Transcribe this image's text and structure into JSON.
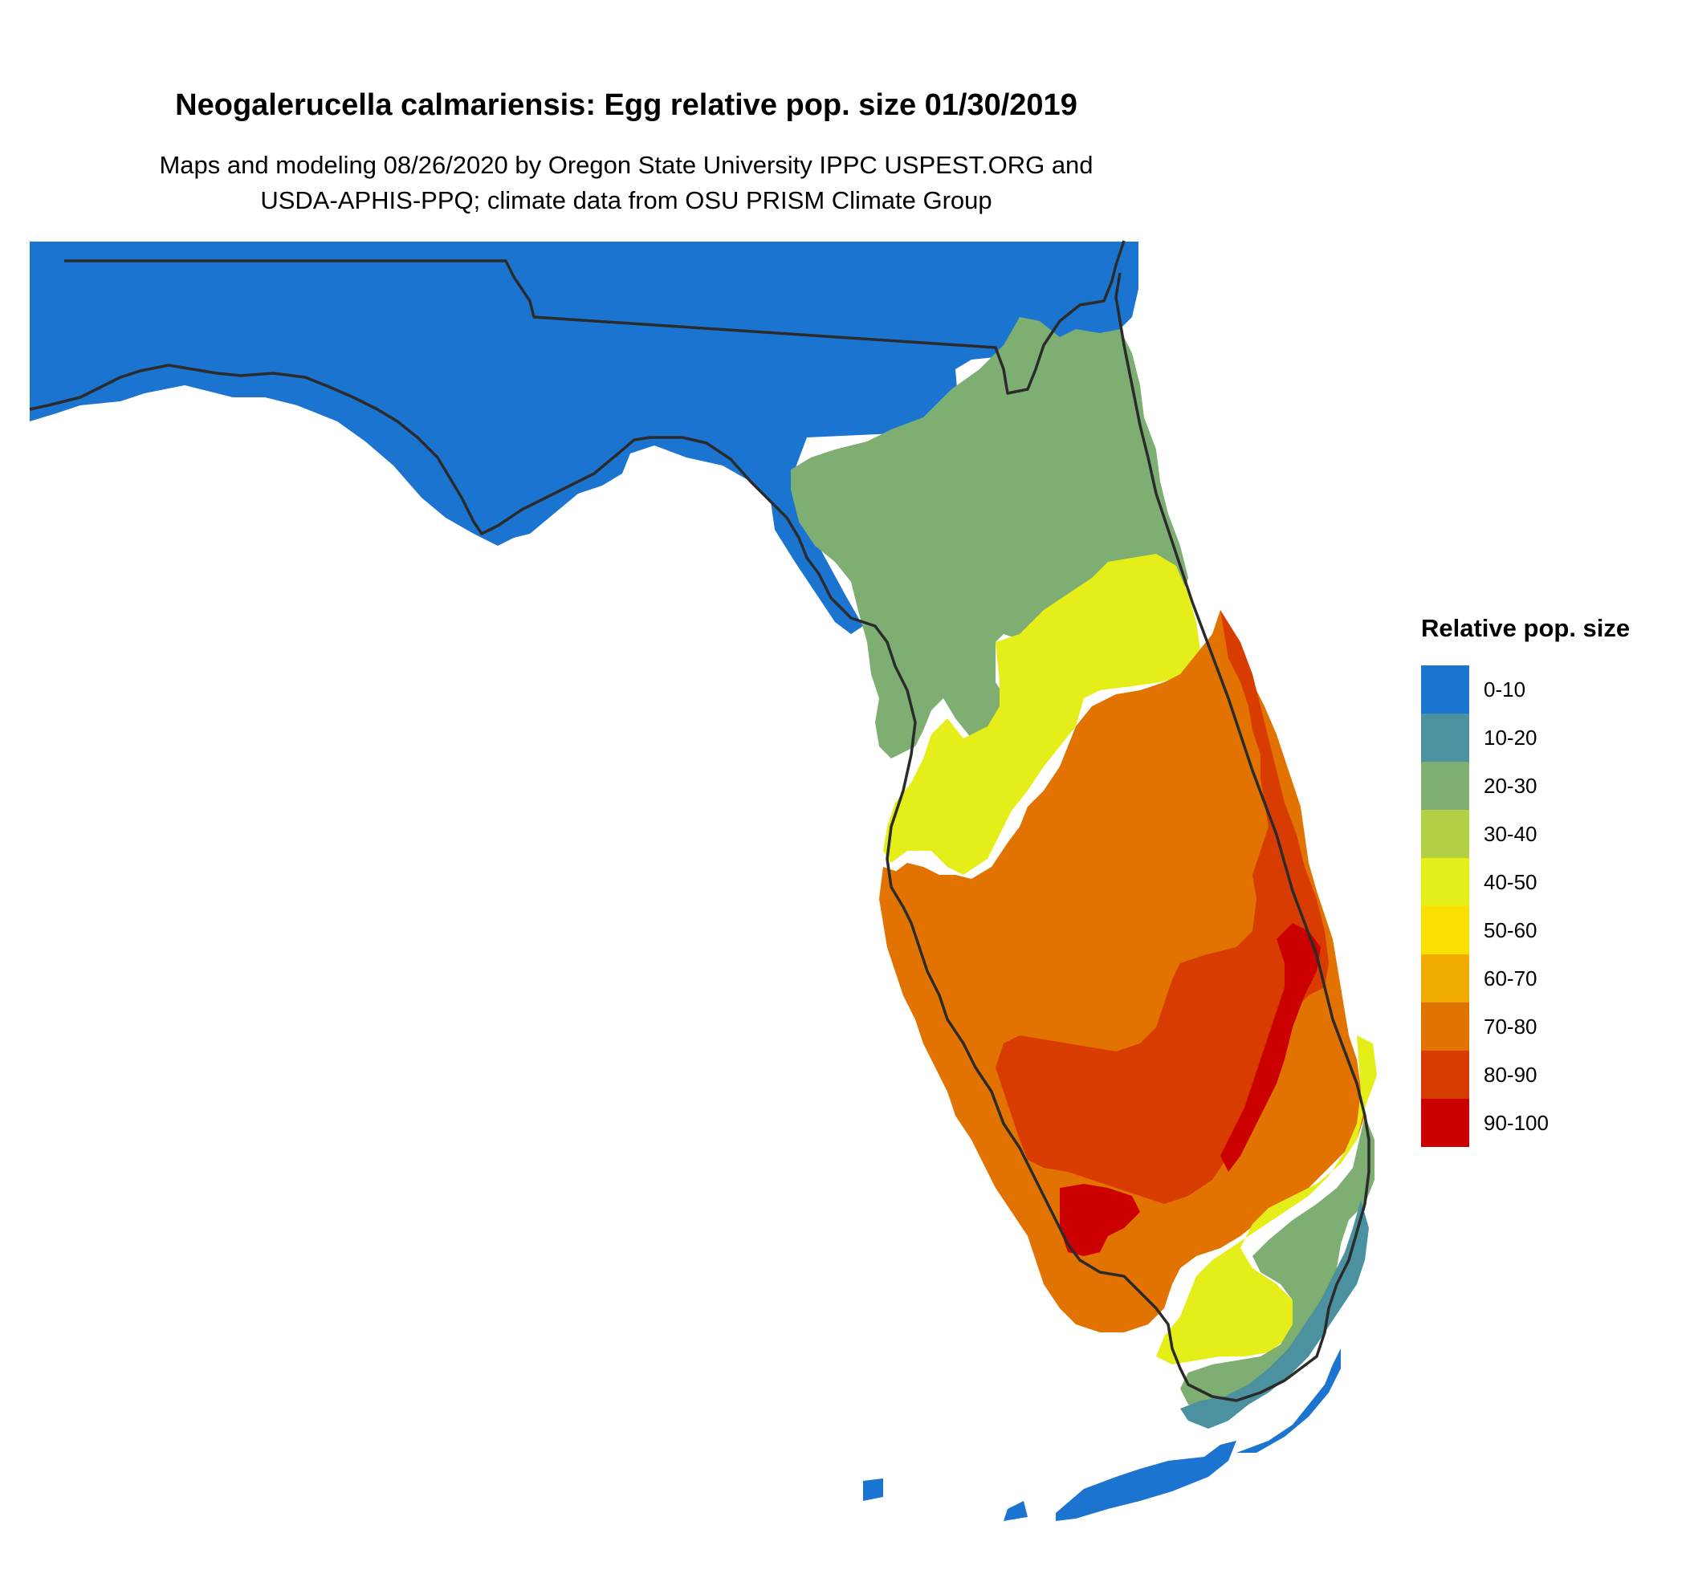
{
  "title": "Neogalerucella calmariensis: Egg relative pop. size 01/30/2019",
  "subtitle_line1": "Maps and modeling 08/26/2020 by Oregon State University IPPC USPEST.ORG and",
  "subtitle_line2": "USDA-APHIS-PPQ; climate data from OSU PRISM Climate Group",
  "legend": {
    "title": "Relative pop. size",
    "items": [
      {
        "label": "0-10",
        "color": "#1b74cf"
      },
      {
        "label": "10-20",
        "color": "#4b91a0"
      },
      {
        "label": "20-30",
        "color": "#7fae72"
      },
      {
        "label": "30-40",
        "color": "#b3cf45"
      },
      {
        "label": "40-50",
        "color": "#e6ee1a"
      },
      {
        "label": "50-60",
        "color": "#fae000"
      },
      {
        "label": "60-70",
        "color": "#efab00"
      },
      {
        "label": "70-80",
        "color": "#e27300"
      },
      {
        "label": "80-90",
        "color": "#d93c00"
      },
      {
        "label": "90-100",
        "color": "#cc0000"
      }
    ]
  }
}
